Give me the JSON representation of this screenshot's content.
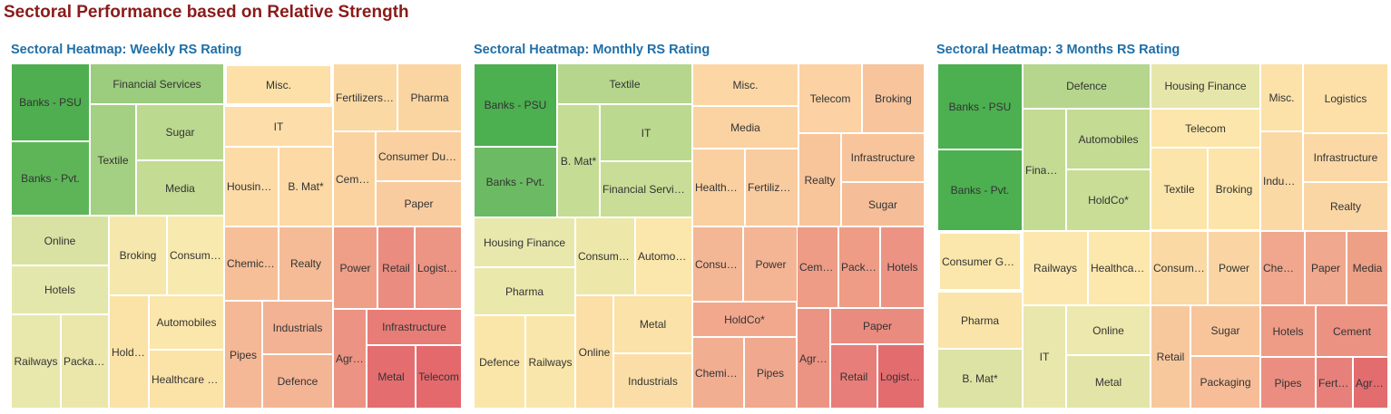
{
  "page_title": "Sectoral Performance based on Relative Strength",
  "legend_colors": {
    "strong_positive": "#4caf50",
    "positive": "#a8d08d",
    "neutral": "#fde9b8",
    "negative": "#f0a089",
    "strong_negative": "#e36b6b"
  },
  "chart_data": [
    {
      "type": "treemap",
      "title": "Sectoral Heatmap: Weekly RS Rating",
      "color_scale": "green = strongest RS, red = weakest RS",
      "sectors": [
        {
          "label": "Banks - PSU",
          "color": "#4fae50"
        },
        {
          "label": "Banks - Pvt.",
          "color": "#5eb558"
        },
        {
          "label": "Financial Services",
          "color": "#9ccc7e"
        },
        {
          "label": "Textile",
          "color": "#a3d082"
        },
        {
          "label": "Sugar",
          "color": "#bcd990"
        },
        {
          "label": "Media",
          "color": "#c3db93"
        },
        {
          "label": "Online",
          "color": "#d9e2a3"
        },
        {
          "label": "Hotels",
          "color": "#e4e7ab"
        },
        {
          "label": "Railways",
          "color": "#e8e8ac"
        },
        {
          "label": "Packagi…",
          "color": "#ebe7ab"
        },
        {
          "label": "Broking",
          "color": "#f6e8ad"
        },
        {
          "label": "Consumer…",
          "color": "#f8e9ae"
        },
        {
          "label": "HoldC…",
          "color": "#fbe3a8"
        },
        {
          "label": "Automobiles",
          "color": "#fbe6ab"
        },
        {
          "label": "Healthcare Del…",
          "color": "#fbe3a8"
        },
        {
          "label": "Misc.",
          "color": "#fce0a8"
        },
        {
          "label": "IT",
          "color": "#fddeaa"
        },
        {
          "label": "Housing F…",
          "color": "#fcdba7"
        },
        {
          "label": "B. Mat*",
          "color": "#fcd9a5"
        },
        {
          "label": "Fertilizers &…",
          "color": "#fad9a4"
        },
        {
          "label": "Pharma",
          "color": "#fad5a1"
        },
        {
          "label": "Cement",
          "color": "#fad3a1"
        },
        {
          "label": "Consumer Durab…",
          "color": "#fad0a0"
        },
        {
          "label": "Paper",
          "color": "#f9cca0"
        },
        {
          "label": "Chemicals",
          "color": "#f6bf98"
        },
        {
          "label": "Realty",
          "color": "#f5bb96"
        },
        {
          "label": "Pipes",
          "color": "#f4b896"
        },
        {
          "label": "Industrials",
          "color": "#f3b293"
        },
        {
          "label": "Defence",
          "color": "#f4b595"
        },
        {
          "label": "Power",
          "color": "#ef9f88"
        },
        {
          "label": "Retail",
          "color": "#eb8c80"
        },
        {
          "label": "Logisti…",
          "color": "#ed9584"
        },
        {
          "label": "Agric…",
          "color": "#ec9383"
        },
        {
          "label": "Infrastructure",
          "color": "#e87c77"
        },
        {
          "label": "Metal",
          "color": "#e46d70"
        },
        {
          "label": "Telecom",
          "color": "#e4696d"
        }
      ]
    },
    {
      "type": "treemap",
      "title": "Sectoral Heatmap: Monthly RS Rating",
      "color_scale": "green = strongest RS, red = weakest RS",
      "sectors": [
        {
          "label": "Banks - PSU",
          "color": "#4caf50"
        },
        {
          "label": "Banks - Pvt.",
          "color": "#6cbb64"
        },
        {
          "label": "Textile",
          "color": "#b5d68c"
        },
        {
          "label": "B. Mat*",
          "color": "#c5dc95"
        },
        {
          "label": "IT",
          "color": "#bcd990"
        },
        {
          "label": "Financial Services",
          "color": "#c9dd97"
        },
        {
          "label": "Housing Finance",
          "color": "#e8e8ad"
        },
        {
          "label": "Pharma",
          "color": "#ebe8ac"
        },
        {
          "label": "Defence",
          "color": "#fbe6aa"
        },
        {
          "label": "Railways",
          "color": "#f9e6ab"
        },
        {
          "label": "Consume…",
          "color": "#ede7aa"
        },
        {
          "label": "Automob…",
          "color": "#fbe7ab"
        },
        {
          "label": "Online",
          "color": "#fbdfa7"
        },
        {
          "label": "Metal",
          "color": "#fbe2a8"
        },
        {
          "label": "Industrials",
          "color": "#fbdea7"
        },
        {
          "label": "Misc.",
          "color": "#fcd7a5"
        },
        {
          "label": "Media",
          "color": "#fbd2a2"
        },
        {
          "label": "Healthcar…",
          "color": "#fad0a1"
        },
        {
          "label": "Fertilizer…",
          "color": "#f9cca0"
        },
        {
          "label": "Telecom",
          "color": "#fcd1a3"
        },
        {
          "label": "Broking",
          "color": "#f8c49c"
        },
        {
          "label": "Realty",
          "color": "#f8c59b"
        },
        {
          "label": "Infrastructure",
          "color": "#f8c49b"
        },
        {
          "label": "Sugar",
          "color": "#f6be98"
        },
        {
          "label": "Consume…",
          "color": "#f4b796"
        },
        {
          "label": "Power",
          "color": "#f4b595"
        },
        {
          "label": "HoldCo*",
          "color": "#f2a88d"
        },
        {
          "label": "Chemicals",
          "color": "#f2ae91"
        },
        {
          "label": "Pipes",
          "color": "#f0a88e"
        },
        {
          "label": "Cement",
          "color": "#ee9c86"
        },
        {
          "label": "Packag…",
          "color": "#ee9c86"
        },
        {
          "label": "Hotels",
          "color": "#ec9384"
        },
        {
          "label": "Agric…",
          "color": "#ec9484"
        },
        {
          "label": "Paper",
          "color": "#ea8b7f"
        },
        {
          "label": "Retail",
          "color": "#e77e79"
        },
        {
          "label": "Logistics",
          "color": "#e36c6f"
        }
      ]
    },
    {
      "type": "treemap",
      "title": "Sectoral Heatmap: 3 Months RS Rating",
      "color_scale": "green = strongest RS, red = weakest RS",
      "sectors": [
        {
          "label": "Banks - PSU",
          "color": "#4caf50"
        },
        {
          "label": "Banks - Pvt.",
          "color": "#4caf50"
        },
        {
          "label": "Defence",
          "color": "#b5d68c"
        },
        {
          "label": "Financi…",
          "color": "#c3db93"
        },
        {
          "label": "Automobiles",
          "color": "#c3db93"
        },
        {
          "label": "HoldCo*",
          "color": "#c9dd97"
        },
        {
          "label": "Consumer Goods",
          "color": "#fbe6ab"
        },
        {
          "label": "Railways",
          "color": "#fce8ae"
        },
        {
          "label": "Healthcar…",
          "color": "#fce7ad"
        },
        {
          "label": "Pharma",
          "color": "#fbe4aa"
        },
        {
          "label": "B. Mat*",
          "color": "#dde3a4"
        },
        {
          "label": "IT",
          "color": "#e9e7ac"
        },
        {
          "label": "Online",
          "color": "#ede8ad"
        },
        {
          "label": "Metal",
          "color": "#e3e5a8"
        },
        {
          "label": "Housing Finance",
          "color": "#e6e6aa"
        },
        {
          "label": "Telecom",
          "color": "#fce6ab"
        },
        {
          "label": "Textile",
          "color": "#fce5aa"
        },
        {
          "label": "Broking",
          "color": "#fce4aa"
        },
        {
          "label": "Misc.",
          "color": "#fce1a9"
        },
        {
          "label": "Logistics",
          "color": "#fce0a8"
        },
        {
          "label": "Industri…",
          "color": "#fbd9a5"
        },
        {
          "label": "Infrastructure",
          "color": "#fbd8a5"
        },
        {
          "label": "Realty",
          "color": "#fad6a4"
        },
        {
          "label": "Consumer…",
          "color": "#fad9a5"
        },
        {
          "label": "Power",
          "color": "#fad5a3"
        },
        {
          "label": "Retail",
          "color": "#f8c89d"
        },
        {
          "label": "Sugar",
          "color": "#f8c59b"
        },
        {
          "label": "Packaging",
          "color": "#f6bd98"
        },
        {
          "label": "Chemic…",
          "color": "#f0a78d"
        },
        {
          "label": "Paper",
          "color": "#f0a88e"
        },
        {
          "label": "Media",
          "color": "#eea086"
        },
        {
          "label": "Hotels",
          "color": "#ee9c86"
        },
        {
          "label": "Cement",
          "color": "#ec9283"
        },
        {
          "label": "Pipes",
          "color": "#eb8e81"
        },
        {
          "label": "Fertili…",
          "color": "#e7807a"
        },
        {
          "label": "Agri…",
          "color": "#e36c6f"
        }
      ]
    }
  ]
}
